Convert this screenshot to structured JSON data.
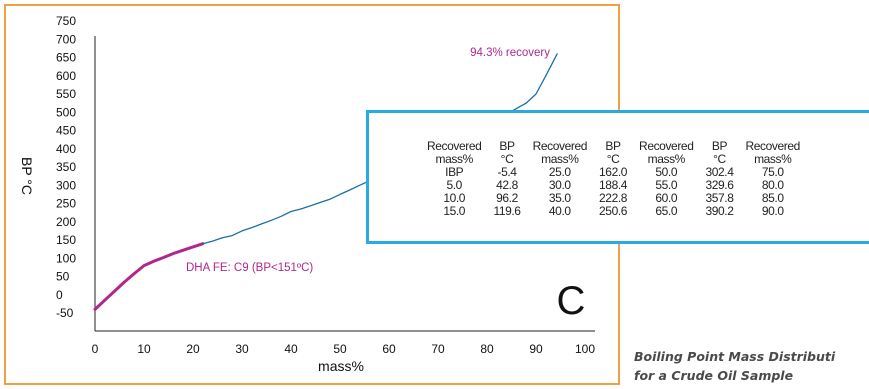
{
  "chart_data": {
    "type": "line",
    "xlabel": "mass%",
    "ylabel": "BP °C",
    "xlim": [
      0,
      100
    ],
    "ylim": [
      -50,
      750
    ],
    "x_ticks": [
      "0",
      "10",
      "20",
      "30",
      "40",
      "50",
      "60",
      "70",
      "80",
      "90",
      "100"
    ],
    "y_ticks": [
      "750",
      "700",
      "650",
      "600",
      "550",
      "500",
      "450",
      "400",
      "350",
      "300",
      "250",
      "200",
      "150",
      "100",
      "50",
      "0",
      "-50"
    ],
    "series": [
      {
        "color": "#b0278c",
        "x": [
          0,
          2,
          4,
          6,
          8,
          10,
          12,
          14,
          16,
          18,
          20,
          22
        ],
        "y": [
          -40,
          -15,
          10,
          35,
          58,
          80,
          92,
          102,
          113,
          122,
          131,
          140
        ]
      },
      {
        "color": "#1a6fa8",
        "x": [
          22,
          24,
          26,
          28,
          30,
          32,
          34,
          36,
          38,
          40,
          42,
          44,
          46,
          48,
          50,
          52,
          54,
          56,
          58,
          60,
          62,
          64,
          66,
          68,
          70,
          72,
          74,
          76,
          78,
          80,
          82,
          84,
          86,
          88,
          90,
          92,
          94.3
        ],
        "y": [
          140,
          147,
          156,
          162,
          175,
          184,
          194,
          204,
          215,
          228,
          235,
          244,
          253,
          262,
          275,
          287,
          300,
          312,
          323,
          335,
          348,
          360,
          375,
          388,
          400,
          415,
          425,
          440,
          455,
          465,
          480,
          495,
          510,
          525,
          550,
          600,
          660
        ]
      }
    ],
    "annotations": [
      {
        "text": "94.3% recovery",
        "color": "#b0278c"
      },
      {
        "text": "DHA FE: C9 (BP<151ºC)",
        "color": "#b0278c"
      }
    ],
    "panel_label": "C",
    "table": {
      "headers": [
        [
          "Recovered",
          "mass%"
        ],
        [
          "BP",
          "°C"
        ],
        [
          "Recovered",
          "mass%"
        ],
        [
          "BP",
          "°C"
        ],
        [
          "Recovered",
          "mass%"
        ],
        [
          "BP",
          "°C"
        ],
        [
          "Recovered",
          "mass%"
        ]
      ],
      "rows": [
        [
          "IBP",
          "-5.4",
          "25.0",
          "162.0",
          "50.0",
          "302.4",
          "75.0"
        ],
        [
          "5.0",
          "42.8",
          "30.0",
          "188.4",
          "55.0",
          "329.6",
          "80.0"
        ],
        [
          "10.0",
          "96.2",
          "35.0",
          "222.8",
          "60.0",
          "357.8",
          "85.0"
        ],
        [
          "15.0",
          "119.6",
          "40.0",
          "250.6",
          "65.0",
          "390.2",
          "90.0"
        ]
      ]
    },
    "grid": false,
    "legend": "none"
  },
  "caption": {
    "line1": "Boiling Point Mass Distributi",
    "line2": "for a Crude Oil Sample"
  }
}
